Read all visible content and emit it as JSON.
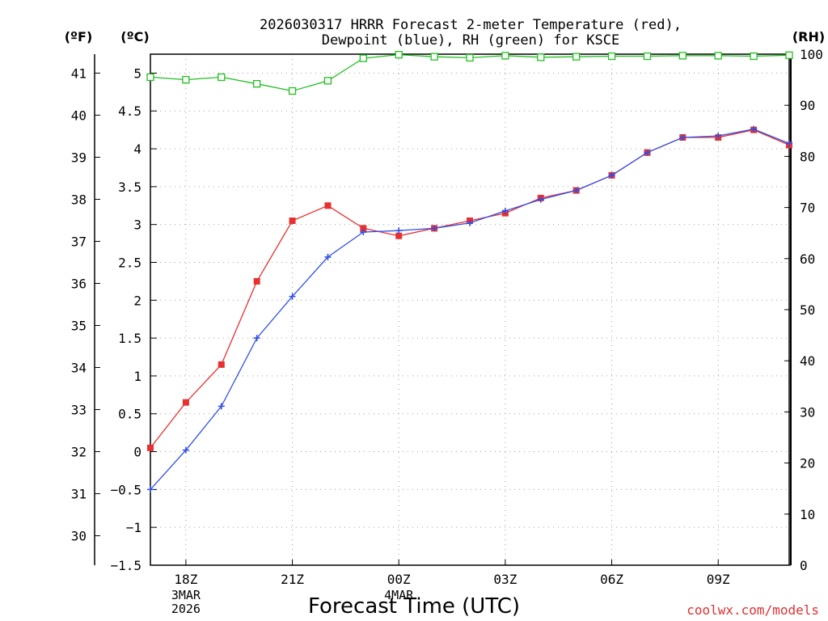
{
  "chart_data": {
    "type": "line",
    "title_line1": "2026030317 HRRR Forecast 2-meter Temperature (red),",
    "title_line2": "Dewpoint (blue), RH (green) for KSCE",
    "xlabel": "Forecast Time (UTC)",
    "units": {
      "fahrenheit": "(ºF)",
      "celsius": "(ºC)",
      "rh": "(RH)"
    },
    "x_hours": [
      17,
      18,
      19,
      20,
      21,
      22,
      23,
      24,
      25,
      26,
      27,
      28,
      29,
      30,
      31,
      32,
      33,
      34,
      35
    ],
    "xlim": [
      17,
      35
    ],
    "x_ticks": [
      {
        "hour": 18,
        "label": "18Z",
        "date1": "3MAR",
        "date2": "2026"
      },
      {
        "hour": 21,
        "label": "21Z",
        "date1": "",
        "date2": ""
      },
      {
        "hour": 24,
        "label": "00Z",
        "date1": "4MAR",
        "date2": ""
      },
      {
        "hour": 27,
        "label": "03Z",
        "date1": "",
        "date2": ""
      },
      {
        "hour": 30,
        "label": "06Z",
        "date1": "",
        "date2": ""
      },
      {
        "hour": 33,
        "label": "09Z",
        "date1": "",
        "date2": ""
      }
    ],
    "ylim_celsius": [
      -1.5,
      5.25
    ],
    "y_ticks_celsius": [
      "-1.5",
      "-1",
      "-0.5",
      "0",
      "0.5",
      "1",
      "1.5",
      "2",
      "2.5",
      "3",
      "3.5",
      "4",
      "4.5",
      "5"
    ],
    "y_ticks_fahrenheit": [
      "30",
      "31",
      "32",
      "33",
      "34",
      "35",
      "36",
      "37",
      "38",
      "39",
      "40",
      "41"
    ],
    "ylim_rh": [
      0,
      100
    ],
    "y_ticks_rh": [
      "0",
      "10",
      "20",
      "30",
      "40",
      "50",
      "60",
      "70",
      "80",
      "90",
      "100"
    ],
    "series": [
      {
        "name": "Temperature",
        "color": "#e83030",
        "marker": "filled-square",
        "axis": "celsius",
        "values": [
          0.05,
          0.65,
          1.15,
          2.25,
          3.05,
          3.25,
          2.95,
          2.85,
          2.95,
          3.05,
          3.15,
          3.35,
          3.45,
          3.65,
          3.95,
          4.15,
          4.15,
          4.25,
          4.05
        ]
      },
      {
        "name": "Dewpoint",
        "color": "#3050e8",
        "marker": "plus",
        "axis": "celsius",
        "values": [
          -0.5,
          0.02,
          0.6,
          1.5,
          2.05,
          2.57,
          2.9,
          2.92,
          2.95,
          3.02,
          3.18,
          3.33,
          3.45,
          3.65,
          3.95,
          4.15,
          4.17,
          4.26,
          4.07
        ]
      },
      {
        "name": "RH",
        "color": "#20c020",
        "marker": "open-square",
        "axis": "rh",
        "values": [
          95.5,
          95.0,
          95.5,
          94.2,
          92.8,
          94.8,
          99.2,
          99.9,
          99.5,
          99.3,
          99.7,
          99.4,
          99.5,
          99.6,
          99.6,
          99.7,
          99.7,
          99.6,
          99.8
        ]
      }
    ]
  },
  "credit": "coolwx.com/models"
}
